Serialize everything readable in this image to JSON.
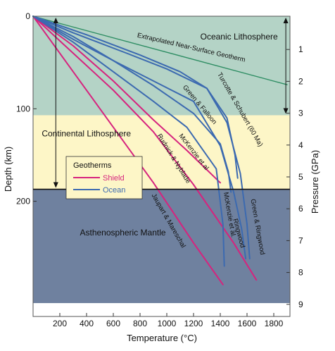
{
  "chart_data": {
    "type": "line",
    "xlabel": "Temperature (°C)",
    "ylabel": "Depth (km)",
    "y2label": "Pressure (GPa)",
    "xlim": [
      0,
      1930
    ],
    "ylim": [
      0,
      310
    ],
    "x_ticks": [
      200,
      400,
      600,
      800,
      1000,
      1200,
      1400,
      1600,
      1800
    ],
    "y_ticks": [
      0,
      100,
      200
    ],
    "y2_ticks": [
      1,
      2,
      3,
      4,
      5,
      6,
      7,
      8,
      9
    ],
    "colors": {
      "oceanic_lithosphere": "#b4d3c6",
      "continental_lithosphere": "#fdf6c7",
      "asthenosphere": "#6f819f",
      "shield": "#d6237e",
      "ocean": "#3c6ab0",
      "near_surface": "#2f8e64"
    },
    "regions": [
      {
        "label": "Oceanic   Lithosphere",
        "depth_from": 0,
        "depth_to": 107
      },
      {
        "label": "Continental Lithosphere",
        "depth_from": 107,
        "depth_to": 187
      },
      {
        "label": "Asthenospheric Mantle",
        "depth_from": 187,
        "depth_to": 310
      }
    ],
    "thickness_arrows": [
      {
        "name": "oceanic",
        "temperature": 1890,
        "depth_from": 0,
        "depth_to": 107
      },
      {
        "name": "continental",
        "temperature": 170,
        "depth_from": 0,
        "depth_to": 187
      }
    ],
    "legend": {
      "title": "Geotherms",
      "entries": [
        {
          "label": "Shield",
          "color": "#d6237e"
        },
        {
          "label": "Ocean",
          "color": "#3c6ab0"
        }
      ]
    },
    "series": [
      {
        "name": "Extrapolated Near-Surface Geotherm",
        "group": "near_surface",
        "x": [
          0,
          1900
        ],
        "y": [
          0,
          74
        ]
      },
      {
        "name": "Jaupart & Mareschal",
        "group": "shield",
        "x": [
          0,
          300,
          600,
          900,
          1200,
          1420
        ],
        "y": [
          0,
          60,
          120,
          180,
          245,
          290
        ]
      },
      {
        "name": "Rudnick & Nyblade",
        "group": "shield",
        "x": [
          0,
          300,
          600,
          900,
          1200,
          1500,
          1670
        ],
        "y": [
          0,
          40,
          80,
          125,
          182,
          245,
          285
        ]
      },
      {
        "name": "McKenzie et al",
        "group": "shield",
        "x": [
          0,
          300,
          600,
          900,
          1150,
          1400
        ],
        "y": [
          0,
          32,
          70,
          112,
          145,
          180
        ]
      },
      {
        "name": "McKenzie et al.",
        "group": "ocean",
        "x": [
          0,
          300,
          600,
          900,
          1150,
          1370,
          1420,
          1430
        ],
        "y": [
          0,
          28,
          60,
          92,
          120,
          165,
          225,
          270
        ]
      },
      {
        "name": "Green & Falloon",
        "group": "ocean",
        "x": [
          0,
          300,
          600,
          900,
          1200,
          1400,
          1460,
          1480
        ],
        "y": [
          0,
          22,
          48,
          75,
          105,
          138,
          168,
          190
        ]
      },
      {
        "name": "Turcotte & Schubert (60 Ma)",
        "group": "ocean",
        "x": [
          0,
          300,
          700,
          1000,
          1300,
          1450,
          1510,
          1530
        ],
        "y": [
          0,
          18,
          40,
          57,
          78,
          110,
          150,
          175
        ]
      },
      {
        "name": "Ringwood",
        "group": "ocean",
        "x": [
          0,
          300,
          600,
          900,
          1200,
          1400,
          1500,
          1560,
          1590
        ],
        "y": [
          0,
          25,
          48,
          70,
          92,
          140,
          190,
          230,
          262
        ]
      },
      {
        "name": "Green & Ringwood",
        "group": "ocean",
        "x": [
          0,
          400,
          800,
          1100,
          1300,
          1450,
          1550,
          1600,
          1620
        ],
        "y": [
          0,
          20,
          42,
          60,
          78,
          115,
          170,
          225,
          262
        ]
      }
    ],
    "line_labels": [
      {
        "text": "Extrapolated Near-Surface Geotherm",
        "x": 1180,
        "y": 36,
        "angle": 13,
        "color": "#111"
      },
      {
        "text": "Turcotte & Schubert (60 Ma)",
        "x": 1535,
        "y": 102,
        "angle": 60,
        "color": "#111"
      },
      {
        "text": "Green & Falloon",
        "x": 1235,
        "y": 97,
        "angle": 50,
        "color": "#111"
      },
      {
        "text": "McKenzie et al",
        "x": 1190,
        "y": 148,
        "angle": 52,
        "color": "#111"
      },
      {
        "text": "Rudnick & Nyblade",
        "x": 1040,
        "y": 155,
        "angle": 58,
        "color": "#111"
      },
      {
        "text": "Jaupart & Mareschal",
        "x": 1000,
        "y": 222,
        "angle": 60,
        "color": "#111"
      },
      {
        "text": "McKenzie et al.",
        "x": 1455,
        "y": 215,
        "angle": 80,
        "color": "#111"
      },
      {
        "text": "Ringwood",
        "x": 1525,
        "y": 235,
        "angle": 75,
        "color": "#111"
      },
      {
        "text": "Green & Ringwood",
        "x": 1665,
        "y": 228,
        "angle": 80,
        "color": "#111"
      }
    ]
  }
}
